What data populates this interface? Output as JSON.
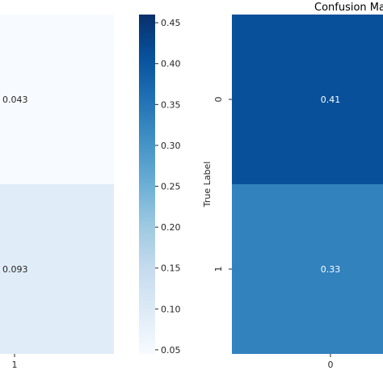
{
  "chart_data": [
    {
      "type": "heatmap",
      "title": "",
      "xlabel": "",
      "ylabel": "",
      "x_tick_labels": [
        "1"
      ],
      "y_tick_labels": [],
      "cells": [
        {
          "row": 0,
          "col": 1,
          "value": 0.043,
          "label": "0.043"
        },
        {
          "row": 1,
          "col": 1,
          "value": 0.093,
          "label": "0.093"
        }
      ],
      "colormap": "Blues",
      "colorbar": {
        "vmin": 0.045,
        "vmax": 0.46,
        "ticks": [
          0.05,
          0.1,
          0.15,
          0.2,
          0.25,
          0.3,
          0.35,
          0.4,
          0.45
        ],
        "tick_labels": [
          "0.05",
          "0.10",
          "0.15",
          "0.20",
          "0.25",
          "0.30",
          "0.35",
          "0.40",
          "0.45"
        ]
      },
      "grid": false,
      "partially_visible": true
    },
    {
      "type": "heatmap",
      "title": "Confusion Ma",
      "xlabel": "",
      "ylabel": "True Label",
      "x_tick_labels": [
        "0"
      ],
      "y_tick_labels": [
        "0",
        "1"
      ],
      "cells": [
        {
          "row": 0,
          "col": 0,
          "value": 0.41,
          "label": "0.41"
        },
        {
          "row": 1,
          "col": 0,
          "value": 0.33,
          "label": "0.33"
        }
      ],
      "colormap": "Blues",
      "grid": false,
      "partially_visible": true
    }
  ],
  "colors": {
    "colormap_stops": [
      "#f7fbff",
      "#deebf7",
      "#c6dbef",
      "#9ecae1",
      "#6baed6",
      "#4292c6",
      "#2171b5",
      "#08519c",
      "#08306b"
    ],
    "text_dark": "#262626",
    "text_light": "#ffffff"
  }
}
